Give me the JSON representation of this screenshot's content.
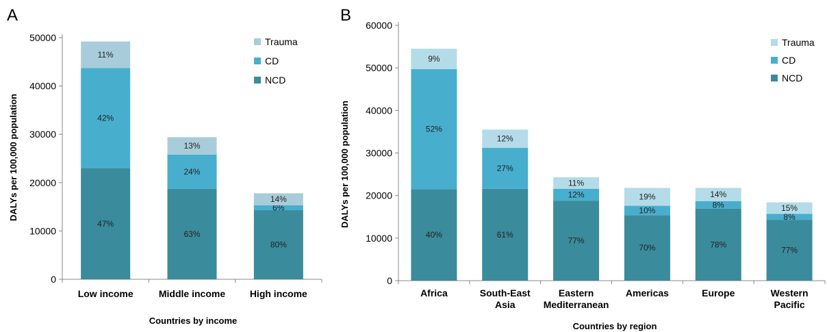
{
  "colors": {
    "A": {
      "NCD": "#3a8b9c",
      "CD": "#48aecd",
      "Trauma": "#a9ccda"
    },
    "B": {
      "NCD": "#3a8b9c",
      "CD": "#48aecd",
      "Trauma": "#b4dbe8"
    }
  },
  "chart_data": [
    {
      "panel": "A",
      "type": "bar",
      "stacked": true,
      "categories": [
        "Low income",
        "Middle income",
        "High income"
      ],
      "series": [
        {
          "name": "NCD",
          "values": [
            23000,
            18700,
            14300
          ],
          "labels": [
            "47%",
            "63%",
            "80%"
          ]
        },
        {
          "name": "CD",
          "values": [
            20700,
            7100,
            1000
          ],
          "labels": [
            "42%",
            "24%",
            "6%"
          ]
        },
        {
          "name": "Trauma",
          "values": [
            5500,
            3600,
            2500
          ],
          "labels": [
            "11%",
            "13%",
            "14%"
          ]
        }
      ],
      "legend_order": [
        "Trauma",
        "CD",
        "NCD"
      ],
      "legend_position": "top-right",
      "xlabel": "Countries by income",
      "ylabel": "DALYs per 100,000 population",
      "ylim": [
        0,
        50000
      ],
      "yticks": [
        0,
        10000,
        20000,
        30000,
        40000,
        50000
      ],
      "grid": false
    },
    {
      "panel": "B",
      "type": "bar",
      "stacked": true,
      "categories": [
        "Africa",
        "South-East Asia",
        "Eastern Mediterranean",
        "Americas",
        "Europe",
        "Western Pacific"
      ],
      "category_lines": [
        [
          "Africa"
        ],
        [
          "South-East",
          "Asia"
        ],
        [
          "Eastern",
          "Mediterranean"
        ],
        [
          "Americas"
        ],
        [
          "Europe"
        ],
        [
          "Western",
          "Pacific"
        ]
      ],
      "series": [
        {
          "name": "NCD",
          "values": [
            21500,
            21600,
            18800,
            15400,
            16900,
            14300
          ],
          "labels": [
            "40%",
            "61%",
            "77%",
            "70%",
            "78%",
            "77%"
          ]
        },
        {
          "name": "CD",
          "values": [
            28200,
            9600,
            2800,
            2200,
            1800,
            1400
          ],
          "labels": [
            "52%",
            "27%",
            "12%",
            "10%",
            "8%",
            "8%"
          ]
        },
        {
          "name": "Trauma",
          "values": [
            4800,
            4300,
            2700,
            4200,
            3100,
            2700
          ],
          "labels": [
            "9%",
            "12%",
            "11%",
            "19%",
            "14%",
            "15%"
          ]
        }
      ],
      "legend_order": [
        "Trauma",
        "CD",
        "NCD"
      ],
      "legend_position": "top-right",
      "xlabel": "Countries by region",
      "ylabel": "DALYs per 100,000 population",
      "ylim": [
        0,
        60000
      ],
      "yticks": [
        0,
        10000,
        20000,
        30000,
        40000,
        50000,
        60000
      ],
      "grid": false
    }
  ]
}
